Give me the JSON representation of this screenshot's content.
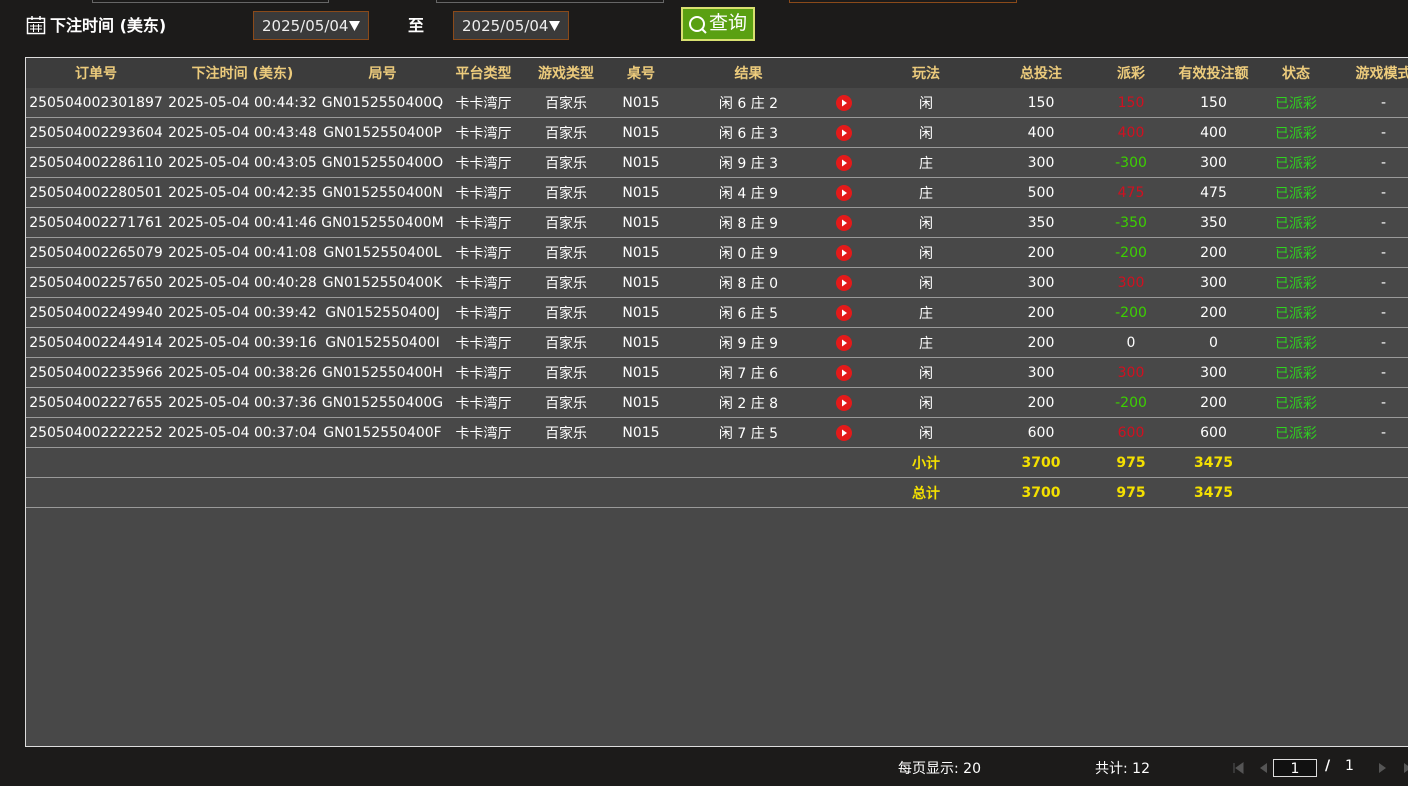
{
  "filter": {
    "label": "下注时间 (美东)",
    "from": "2025/05/04",
    "to_label": "至",
    "to": "2025/05/04",
    "search": "查询"
  },
  "table": {
    "headers": [
      "订单号",
      "下注时间 (美东)",
      "局号",
      "平台类型",
      "游戏类型",
      "桌号",
      "结果",
      "玩法",
      "总投注",
      "派彩",
      "有效投注额",
      "状态",
      "游戏模式"
    ],
    "rows": [
      [
        "250504002301897",
        "2025-05-04 00:44:32",
        "GN0152550400Q",
        "卡卡湾厅",
        "百家乐",
        "N015",
        "闲 6 庄 2",
        "闲",
        150,
        150,
        150,
        "已派彩",
        "-"
      ],
      [
        "250504002293604",
        "2025-05-04 00:43:48",
        "GN0152550400P",
        "卡卡湾厅",
        "百家乐",
        "N015",
        "闲 6 庄 3",
        "闲",
        400,
        400,
        400,
        "已派彩",
        "-"
      ],
      [
        "250504002286110",
        "2025-05-04 00:43:05",
        "GN0152550400O",
        "卡卡湾厅",
        "百家乐",
        "N015",
        "闲 9 庄 3",
        "庄",
        300,
        -300,
        300,
        "已派彩",
        "-"
      ],
      [
        "250504002280501",
        "2025-05-04 00:42:35",
        "GN0152550400N",
        "卡卡湾厅",
        "百家乐",
        "N015",
        "闲 4 庄 9",
        "庄",
        500,
        475,
        475,
        "已派彩",
        "-"
      ],
      [
        "250504002271761",
        "2025-05-04 00:41:46",
        "GN0152550400M",
        "卡卡湾厅",
        "百家乐",
        "N015",
        "闲 8 庄 9",
        "闲",
        350,
        -350,
        350,
        "已派彩",
        "-"
      ],
      [
        "250504002265079",
        "2025-05-04 00:41:08",
        "GN0152550400L",
        "卡卡湾厅",
        "百家乐",
        "N015",
        "闲 0 庄 9",
        "闲",
        200,
        -200,
        200,
        "已派彩",
        "-"
      ],
      [
        "250504002257650",
        "2025-05-04 00:40:28",
        "GN0152550400K",
        "卡卡湾厅",
        "百家乐",
        "N015",
        "闲 8 庄 0",
        "闲",
        300,
        300,
        300,
        "已派彩",
        "-"
      ],
      [
        "250504002249940",
        "2025-05-04 00:39:42",
        "GN0152550400J",
        "卡卡湾厅",
        "百家乐",
        "N015",
        "闲 6 庄 5",
        "庄",
        200,
        -200,
        200,
        "已派彩",
        "-"
      ],
      [
        "250504002244914",
        "2025-05-04 00:39:16",
        "GN0152550400I",
        "卡卡湾厅",
        "百家乐",
        "N015",
        "闲 9 庄 9",
        "庄",
        200,
        0,
        0,
        "已派彩",
        "-"
      ],
      [
        "250504002235966",
        "2025-05-04 00:38:26",
        "GN0152550400H",
        "卡卡湾厅",
        "百家乐",
        "N015",
        "闲 7 庄 6",
        "闲",
        300,
        300,
        300,
        "已派彩",
        "-"
      ],
      [
        "250504002227655",
        "2025-05-04 00:37:36",
        "GN0152550400G",
        "卡卡湾厅",
        "百家乐",
        "N015",
        "闲 2 庄 8",
        "闲",
        200,
        -200,
        200,
        "已派彩",
        "-"
      ],
      [
        "250504002222252",
        "2025-05-04 00:37:04",
        "GN0152550400F",
        "卡卡湾厅",
        "百家乐",
        "N015",
        "闲 7 庄 5",
        "闲",
        600,
        600,
        600,
        "已派彩",
        "-"
      ]
    ],
    "summary": [
      {
        "label": "小计",
        "total_bet": 3700,
        "payout": 975,
        "valid_bet": 3475
      },
      {
        "label": "总计",
        "total_bet": 3700,
        "payout": 975,
        "valid_bet": 3475
      }
    ]
  },
  "footer": {
    "page_size": "每页显示: 20",
    "count": "共计: 12",
    "page": "1",
    "sep": "/",
    "pages": "1"
  }
}
